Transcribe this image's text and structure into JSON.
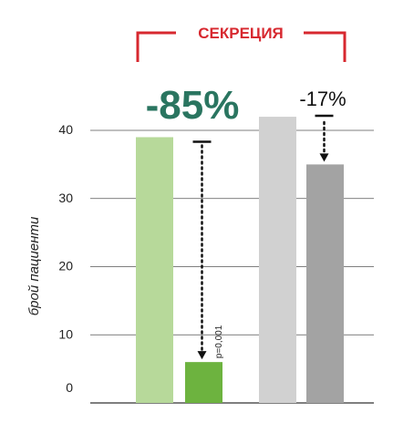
{
  "chart_data": {
    "type": "bar",
    "title": "",
    "xlabel": "",
    "ylabel": "брой пациенти",
    "ylim": [
      0,
      40
    ],
    "yticks": [
      0,
      10,
      20,
      30,
      40
    ],
    "grid": true,
    "bars": [
      {
        "value": 39,
        "color": "#b7d99a"
      },
      {
        "value": 6,
        "color": "#6db33f"
      },
      {
        "value": 42,
        "color": "#d1d1d1"
      },
      {
        "value": 35,
        "color": "#a3a3a3"
      }
    ],
    "bracket_label": "СЕКРЕЦИЯ",
    "bracket_color": "#d7282f",
    "annotations": [
      {
        "label": "-85%",
        "from_bar": 0,
        "to_bar": 1,
        "color": "#2a7560",
        "note": "p=0,001"
      },
      {
        "label": "-17%",
        "from_bar": 2,
        "to_bar": 3,
        "color": "#111111"
      }
    ]
  }
}
